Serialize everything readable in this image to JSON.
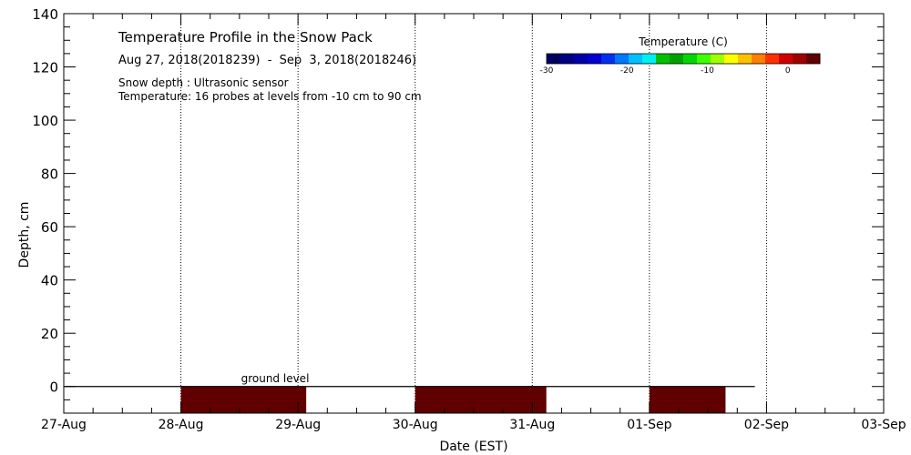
{
  "chart_data": {
    "type": "heatmap",
    "title": "Temperature Profile in the Snow Pack",
    "subtitle": "Aug 27, 2018(2018239)  -  Sep  3, 2018(2018246)",
    "notes": [
      "Snow depth : Ultrasonic sensor",
      "Temperature: 16 probes at levels from -10 cm to 90 cm"
    ],
    "xlabel": "Date (EST)",
    "ylabel": "Depth, cm",
    "x_ticks": [
      "27-Aug",
      "28-Aug",
      "29-Aug",
      "30-Aug",
      "31-Aug",
      "01-Sep",
      "02-Sep",
      "03-Sep"
    ],
    "xlim": [
      0,
      7
    ],
    "ylim": [
      -10,
      140
    ],
    "y_ticks": [
      0,
      20,
      40,
      60,
      80,
      100,
      120,
      140
    ],
    "grid": true,
    "annotation": "ground level",
    "ground_level": 0,
    "colorbar": {
      "label": "Temperature (C)",
      "ticks": [
        -30,
        -20,
        -10,
        0
      ],
      "range": [
        -30,
        4
      ],
      "colors": [
        "#000060",
        "#000080",
        "#0000a8",
        "#0000d0",
        "#0030f0",
        "#0078ff",
        "#00c0ff",
        "#00f0f0",
        "#00c000",
        "#00a000",
        "#00d800",
        "#40ff00",
        "#a0ff00",
        "#ffff00",
        "#ffc000",
        "#ff8000",
        "#ff3000",
        "#d00000",
        "#a00000",
        "#600000"
      ]
    },
    "series": [
      {
        "x_start": 1.0,
        "x_end": 2.07,
        "y_start": -10,
        "y_end": 0,
        "temperature": 4,
        "color": "#600000"
      },
      {
        "x_start": 3.0,
        "x_end": 4.12,
        "y_start": -10,
        "y_end": 0,
        "temperature": 4,
        "color": "#600000"
      },
      {
        "x_start": 5.0,
        "x_end": 5.65,
        "y_start": -10,
        "y_end": 0,
        "temperature": 4,
        "color": "#600000"
      }
    ],
    "snow_depth_line": {
      "x_start": 0,
      "x_end": 5.9,
      "value": 0
    }
  }
}
